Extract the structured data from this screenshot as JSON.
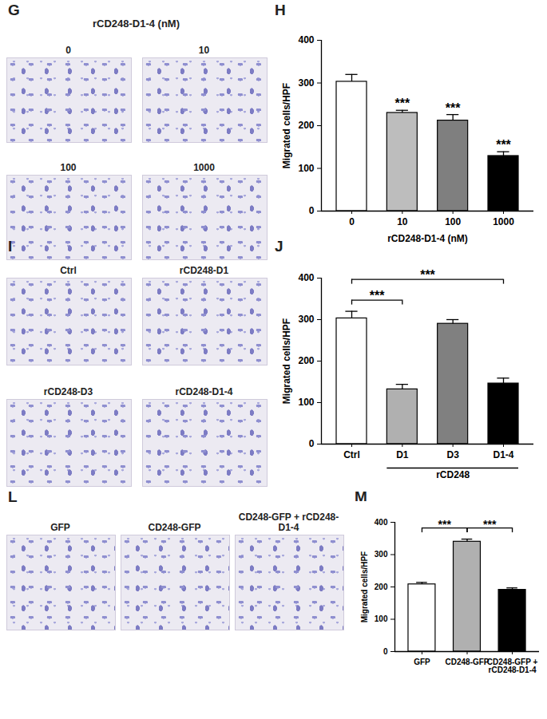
{
  "image_panels": [
    {
      "panel": "G",
      "title": "rCD248-D1-4 (nM)",
      "labels": [
        "0",
        "10",
        "100",
        "1000"
      ]
    },
    {
      "panel": "I",
      "labels": [
        "Ctrl",
        "rCD248-D1",
        "rCD248-D3",
        "rCD248-D1-4"
      ]
    },
    {
      "panel": "L",
      "labels": [
        "GFP",
        "CD248-GFP",
        "CD248-GFP + rCD248-D1-4"
      ]
    }
  ],
  "chart_data": [
    {
      "panel": "H",
      "type": "bar",
      "categories": [
        "0",
        "10",
        "100",
        "1000"
      ],
      "values": [
        303,
        230,
        212,
        129
      ],
      "errors": [
        17,
        6,
        14,
        10
      ],
      "colors": [
        "#ffffff",
        "#bdbdbd",
        "#7f7f7f",
        "#000000"
      ],
      "xlabel": "rCD248-D1-4 (nM)",
      "ylabel": "Migrated cells/HPF",
      "ylim": [
        0,
        400
      ],
      "yticks": [
        0,
        100,
        200,
        300,
        400
      ],
      "annotations": [
        {
          "category": "10",
          "text": "***"
        },
        {
          "category": "100",
          "text": "***"
        },
        {
          "category": "1000",
          "text": "***"
        }
      ]
    },
    {
      "panel": "J",
      "type": "bar",
      "categories": [
        "Ctrl",
        "D1",
        "D3",
        "D1-4"
      ],
      "values": [
        303,
        132,
        290,
        146
      ],
      "errors": [
        17,
        12,
        10,
        13
      ],
      "colors": [
        "#ffffff",
        "#b0b0b0",
        "#808080",
        "#000000"
      ],
      "ylabel": "Migrated cells/HPF",
      "ylim": [
        0,
        400
      ],
      "yticks": [
        0,
        100,
        200,
        300,
        400
      ],
      "comparisons": [
        {
          "from": "Ctrl",
          "to": "D1",
          "text": "***"
        },
        {
          "from": "Ctrl",
          "to": "D1-4",
          "text": "***"
        }
      ],
      "groups": [
        {
          "from": "D1",
          "to": "D1-4",
          "text": "rCD248"
        }
      ]
    },
    {
      "panel": "M",
      "type": "bar",
      "categories": [
        "GFP",
        "CD248-GFP",
        "CD248-GFP + rCD248-D1-4"
      ],
      "values": [
        208,
        340,
        191
      ],
      "errors": [
        6,
        8,
        6
      ],
      "colors": [
        "#ffffff",
        "#b0b0b0",
        "#000000"
      ],
      "ylabel": "Migrated cells/HPF",
      "ylim": [
        0,
        400
      ],
      "yticks": [
        0,
        100,
        200,
        300,
        400
      ],
      "comparisons": [
        {
          "from": "GFP",
          "to": "CD248-GFP",
          "text": "***"
        },
        {
          "from": "CD248-GFP",
          "to": "CD248-GFP + rCD248-D1-4",
          "text": "***"
        }
      ]
    }
  ]
}
